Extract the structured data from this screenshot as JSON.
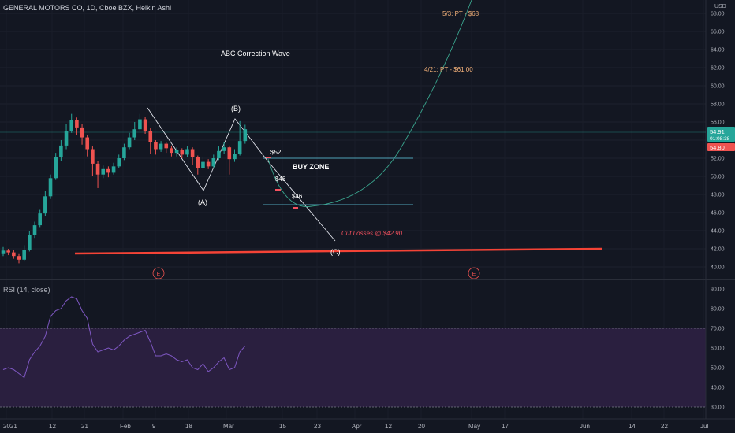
{
  "header": {
    "symbol_line": "GENERAL MOTORS CO, 1D, Cboe BZX, Heikin Ashi",
    "currency": "USD"
  },
  "price_axis": {
    "ticks": [
      "68.00",
      "66.00",
      "64.00",
      "62.00",
      "60.00",
      "58.00",
      "56.00",
      "54.00",
      "52.00",
      "50.00",
      "48.00",
      "46.00",
      "44.00",
      "42.00",
      "40.00"
    ],
    "last_price": "54.91",
    "countdown": "01:08:38",
    "prev_price": "54.80",
    "last_color": "#26a69a",
    "prev_color": "#ef5350"
  },
  "rsi": {
    "label": "RSI (14, close)",
    "ticks": [
      "90.00",
      "80.00",
      "70.00",
      "60.00",
      "50.00",
      "40.00",
      "30.00"
    ],
    "upper": 70,
    "lower": 30,
    "line_color": "#7e57c2",
    "band_color": "#2a1f3f"
  },
  "time_axis": {
    "labels": [
      "2021",
      "12",
      "21",
      "Feb",
      "9",
      "18",
      "Mar",
      "15",
      "23",
      "Apr",
      "12",
      "20",
      "May",
      "17",
      "Jun",
      "14",
      "22",
      "Jul"
    ]
  },
  "annotations": {
    "title": "ABC Correction Wave",
    "wave_a": "(A)",
    "wave_b": "(B)",
    "wave_c": "(C)",
    "buy_zone": "BUY ZONE",
    "level_52": "$52",
    "level_48": "$48",
    "level_46": "$46",
    "cut_losses": "Cut Losses @ $42.90",
    "pt_1": "4/21: PT - $61.00",
    "pt_2": "5/3: PT - $68",
    "earnings_1": "E",
    "earnings_2": "E"
  },
  "chart_data": {
    "type": "candlestick",
    "series_type": "Heikin Ashi",
    "ylim": [
      39,
      69
    ],
    "candles": [
      {
        "o": 41.5,
        "c": 41.8,
        "h": 42.2,
        "l": 41.2
      },
      {
        "o": 41.8,
        "c": 41.6,
        "h": 42.0,
        "l": 41.3
      },
      {
        "o": 41.6,
        "c": 41.2,
        "h": 41.9,
        "l": 40.9
      },
      {
        "o": 41.2,
        "c": 40.8,
        "h": 41.5,
        "l": 40.4
      },
      {
        "o": 40.8,
        "c": 41.9,
        "h": 42.4,
        "l": 40.6
      },
      {
        "o": 41.9,
        "c": 43.5,
        "h": 44.0,
        "l": 41.7
      },
      {
        "o": 43.5,
        "c": 44.6,
        "h": 45.0,
        "l": 43.2
      },
      {
        "o": 44.6,
        "c": 45.9,
        "h": 46.3,
        "l": 44.4
      },
      {
        "o": 45.9,
        "c": 47.8,
        "h": 48.4,
        "l": 45.6
      },
      {
        "o": 47.8,
        "c": 49.8,
        "h": 50.2,
        "l": 47.5
      },
      {
        "o": 49.8,
        "c": 52.1,
        "h": 52.6,
        "l": 49.6
      },
      {
        "o": 52.1,
        "c": 53.4,
        "h": 54.0,
        "l": 51.7
      },
      {
        "o": 53.4,
        "c": 55.0,
        "h": 55.8,
        "l": 53.0
      },
      {
        "o": 55.0,
        "c": 56.2,
        "h": 56.9,
        "l": 54.8
      },
      {
        "o": 56.2,
        "c": 55.4,
        "h": 56.5,
        "l": 54.6
      },
      {
        "o": 55.4,
        "c": 54.3,
        "h": 55.8,
        "l": 53.5
      },
      {
        "o": 54.3,
        "c": 53.0,
        "h": 54.6,
        "l": 52.2
      },
      {
        "o": 53.0,
        "c": 51.4,
        "h": 53.3,
        "l": 50.0
      },
      {
        "o": 51.4,
        "c": 50.2,
        "h": 51.7,
        "l": 48.7
      },
      {
        "o": 50.2,
        "c": 50.8,
        "h": 51.2,
        "l": 49.8
      },
      {
        "o": 50.8,
        "c": 50.4,
        "h": 51.1,
        "l": 49.9
      },
      {
        "o": 50.4,
        "c": 51.1,
        "h": 51.5,
        "l": 50.2
      },
      {
        "o": 51.1,
        "c": 52.0,
        "h": 52.4,
        "l": 50.9
      },
      {
        "o": 52.0,
        "c": 53.2,
        "h": 53.6,
        "l": 51.8
      },
      {
        "o": 53.2,
        "c": 54.3,
        "h": 54.8,
        "l": 53.0
      },
      {
        "o": 54.3,
        "c": 55.2,
        "h": 56.0,
        "l": 54.0
      },
      {
        "o": 55.2,
        "c": 56.3,
        "h": 56.9,
        "l": 55.0
      },
      {
        "o": 56.3,
        "c": 55.0,
        "h": 56.6,
        "l": 54.7
      },
      {
        "o": 55.0,
        "c": 53.8,
        "h": 55.3,
        "l": 52.5
      },
      {
        "o": 53.8,
        "c": 53.0,
        "h": 54.0,
        "l": 52.4
      },
      {
        "o": 53.0,
        "c": 53.6,
        "h": 53.9,
        "l": 52.7
      },
      {
        "o": 53.6,
        "c": 53.1,
        "h": 53.8,
        "l": 52.6
      },
      {
        "o": 53.1,
        "c": 52.6,
        "h": 53.4,
        "l": 52.2
      },
      {
        "o": 52.6,
        "c": 52.9,
        "h": 53.2,
        "l": 52.2
      },
      {
        "o": 52.9,
        "c": 52.4,
        "h": 53.1,
        "l": 52.0
      },
      {
        "o": 52.4,
        "c": 53.0,
        "h": 53.3,
        "l": 52.1
      },
      {
        "o": 53.0,
        "c": 52.1,
        "h": 53.2,
        "l": 51.3
      },
      {
        "o": 52.1,
        "c": 50.9,
        "h": 52.3,
        "l": 50.2
      },
      {
        "o": 50.9,
        "c": 51.6,
        "h": 52.2,
        "l": 50.7
      },
      {
        "o": 51.6,
        "c": 51.1,
        "h": 51.9,
        "l": 50.8
      },
      {
        "o": 51.1,
        "c": 52.0,
        "h": 52.4,
        "l": 50.9
      },
      {
        "o": 52.0,
        "c": 52.8,
        "h": 53.3,
        "l": 51.8
      },
      {
        "o": 52.8,
        "c": 53.2,
        "h": 53.8,
        "l": 52.5
      },
      {
        "o": 53.2,
        "c": 51.9,
        "h": 53.4,
        "l": 50.2
      },
      {
        "o": 51.9,
        "c": 52.5,
        "h": 53.0,
        "l": 51.6
      },
      {
        "o": 52.5,
        "c": 53.9,
        "h": 56.1,
        "l": 52.3
      },
      {
        "o": 53.9,
        "c": 55.2,
        "h": 55.7,
        "l": 53.6
      }
    ],
    "rsi_values": [
      49,
      50,
      49,
      47,
      45,
      54,
      58,
      61,
      66,
      76,
      79,
      80,
      84,
      86,
      85,
      79,
      75,
      62,
      58,
      59,
      60,
      59,
      61,
      64,
      66,
      67,
      68,
      69,
      63,
      56,
      56,
      57,
      56,
      54,
      53,
      54,
      50,
      49,
      52,
      48,
      50,
      53,
      55,
      49,
      50,
      58,
      61
    ]
  }
}
